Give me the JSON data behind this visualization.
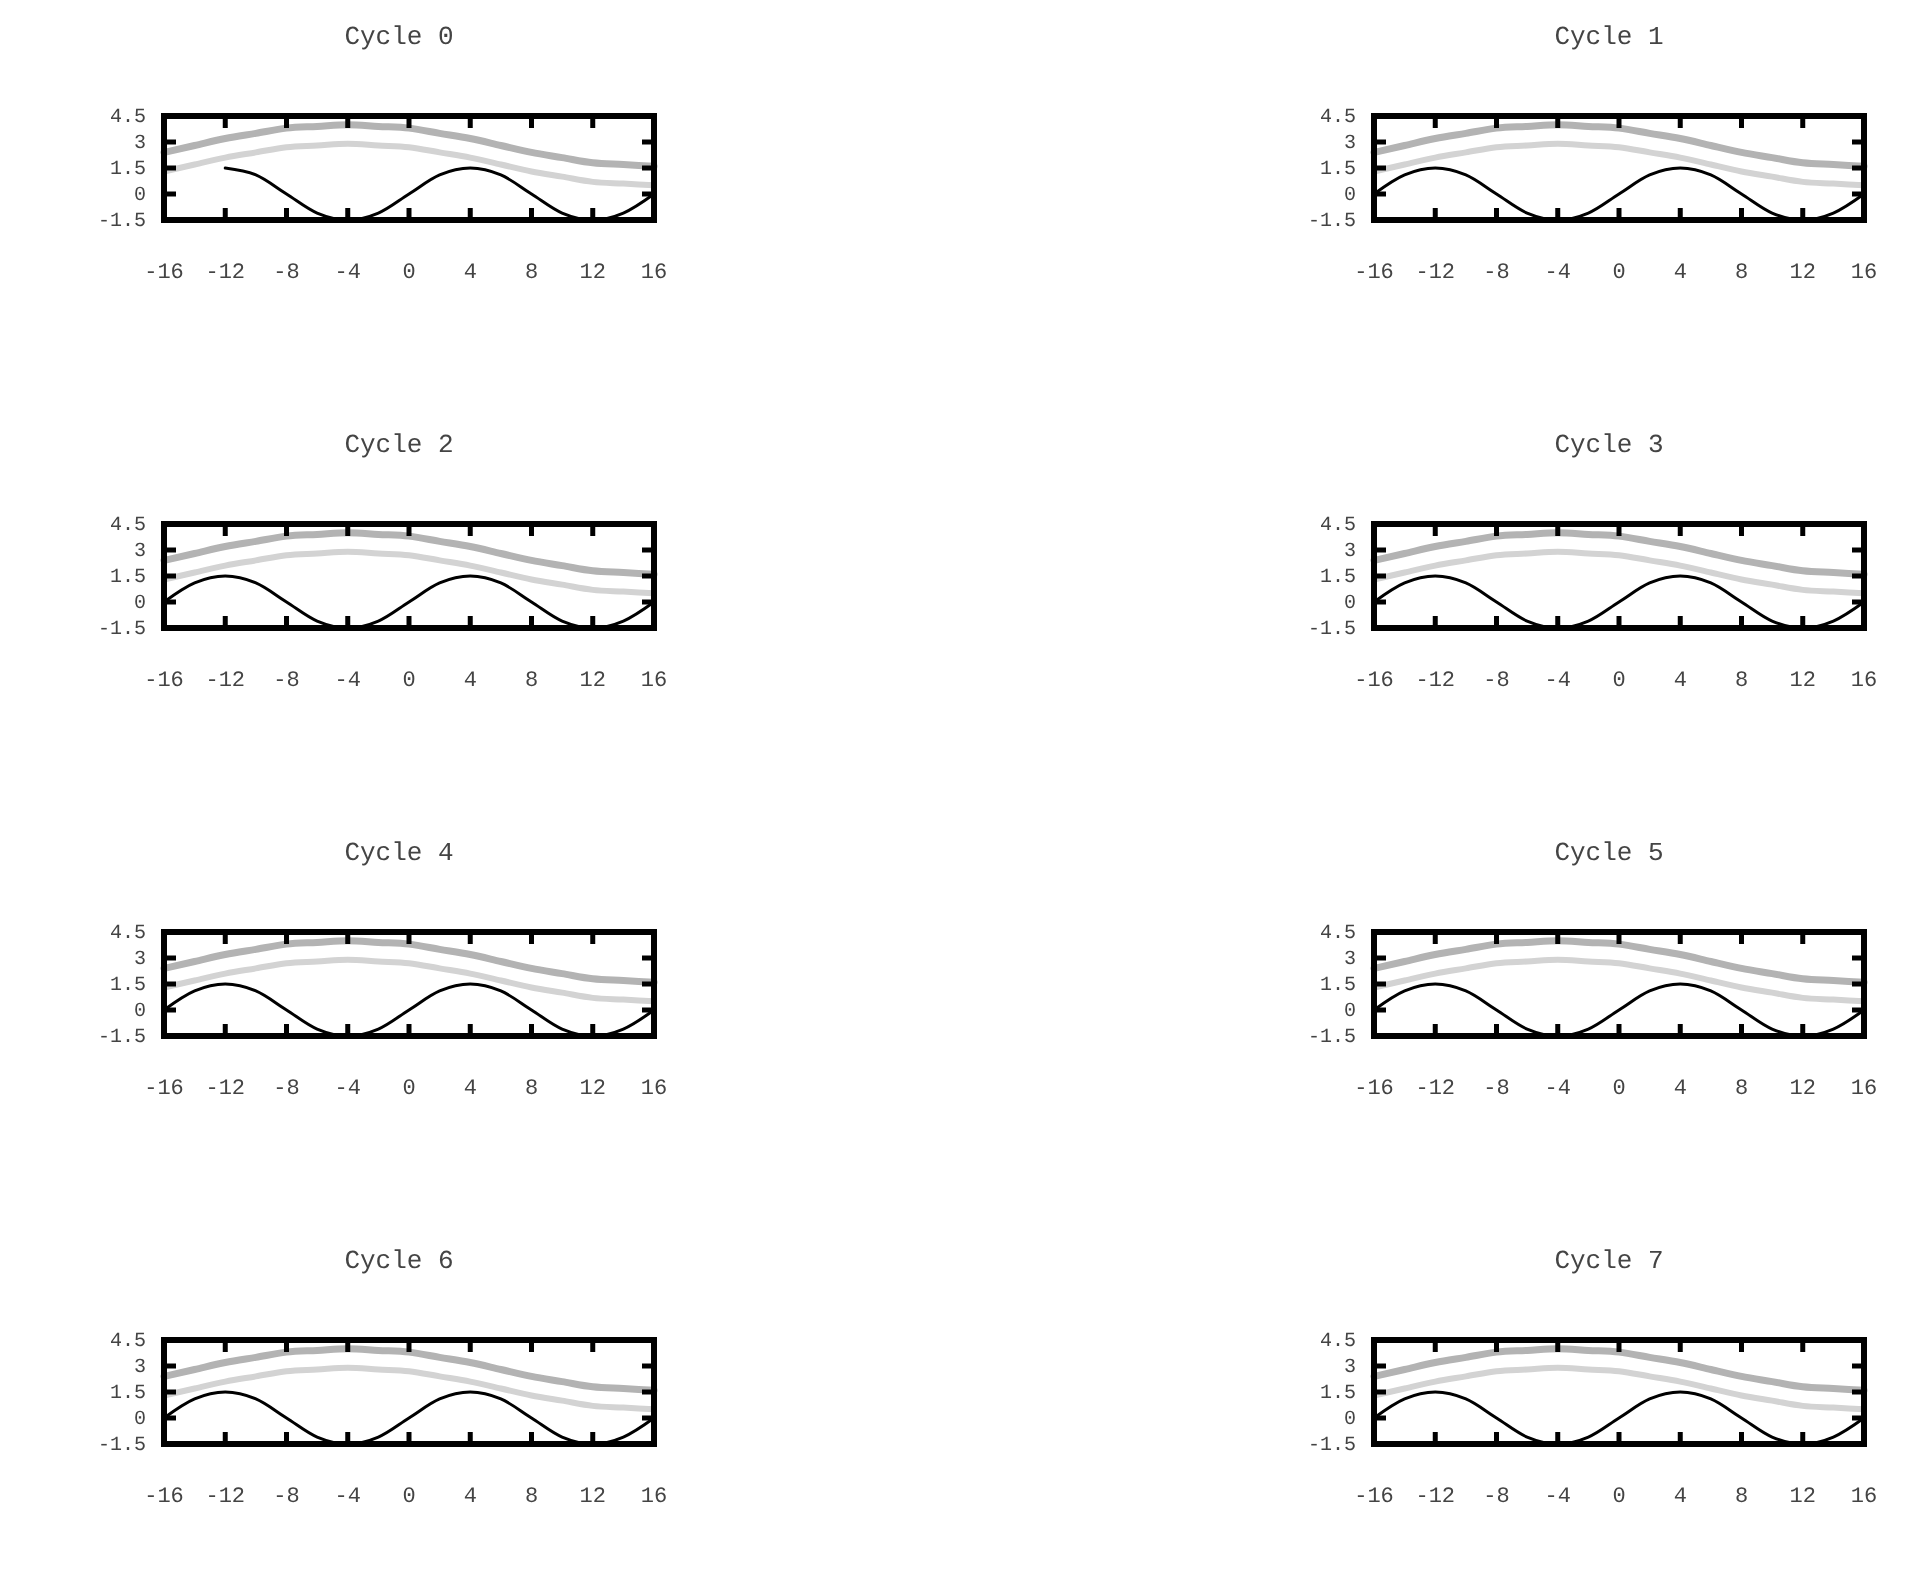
{
  "chart_data": [
    {
      "type": "line",
      "title": "Cycle 0",
      "x": [
        -16,
        -14,
        -12,
        -10,
        -8,
        -6,
        -4,
        -2,
        0,
        2,
        4,
        6,
        8,
        10,
        12,
        14,
        16
      ],
      "xlim": [
        -16,
        16
      ],
      "ylim": [
        -1.5,
        4.5
      ],
      "xticks": [
        -16,
        -12,
        -8,
        -4,
        0,
        4,
        8,
        12,
        16
      ],
      "yticks": [
        -1.5,
        0,
        1.5,
        3,
        4.5
      ],
      "series": [
        {
          "color": "#b3b3b3",
          "values": [
            2.4,
            2.8,
            3.2,
            3.5,
            3.8,
            3.9,
            4.0,
            3.9,
            3.8,
            3.5,
            3.2,
            2.8,
            2.4,
            2.1,
            1.8,
            1.7,
            1.6
          ]
        },
        {
          "color": "#d3d3d3",
          "values": [
            1.3,
            1.7,
            2.1,
            2.4,
            2.7,
            2.8,
            2.9,
            2.8,
            2.7,
            2.4,
            2.1,
            1.7,
            1.3,
            1.0,
            0.7,
            0.6,
            0.5
          ]
        },
        {
          "color": "#000000",
          "values": [
            null,
            null,
            1.5,
            1.1,
            0,
            -1.1,
            -1.5,
            -1.1,
            0,
            1.1,
            1.5,
            1.1,
            0,
            -1.1,
            -1.5,
            -1.1,
            0
          ]
        }
      ]
    },
    {
      "type": "line",
      "title": "Cycle 1",
      "x": [
        -16,
        -14,
        -12,
        -10,
        -8,
        -6,
        -4,
        -2,
        0,
        2,
        4,
        6,
        8,
        10,
        12,
        14,
        16
      ],
      "xlim": [
        -16,
        16
      ],
      "ylim": [
        -1.5,
        4.5
      ],
      "xticks": [
        -16,
        -12,
        -8,
        -4,
        0,
        4,
        8,
        12,
        16
      ],
      "yticks": [
        -1.5,
        0,
        1.5,
        3,
        4.5
      ],
      "series": [
        {
          "color": "#b3b3b3",
          "values": [
            2.4,
            2.8,
            3.2,
            3.5,
            3.8,
            3.9,
            4.0,
            3.9,
            3.8,
            3.5,
            3.2,
            2.8,
            2.4,
            2.1,
            1.8,
            1.7,
            1.6
          ]
        },
        {
          "color": "#d3d3d3",
          "values": [
            1.3,
            1.7,
            2.1,
            2.4,
            2.7,
            2.8,
            2.9,
            2.8,
            2.7,
            2.4,
            2.1,
            1.7,
            1.3,
            1.0,
            0.7,
            0.6,
            0.5
          ]
        },
        {
          "color": "#000000",
          "values": [
            0,
            1.1,
            1.5,
            1.1,
            0,
            -1.1,
            -1.5,
            -1.1,
            0,
            1.1,
            1.5,
            1.1,
            0,
            -1.1,
            -1.5,
            -1.1,
            0
          ]
        }
      ]
    },
    {
      "type": "line",
      "title": "Cycle 2",
      "x": [
        -16,
        -14,
        -12,
        -10,
        -8,
        -6,
        -4,
        -2,
        0,
        2,
        4,
        6,
        8,
        10,
        12,
        14,
        16
      ],
      "xlim": [
        -16,
        16
      ],
      "ylim": [
        -1.5,
        4.5
      ],
      "xticks": [
        -16,
        -12,
        -8,
        -4,
        0,
        4,
        8,
        12,
        16
      ],
      "yticks": [
        -1.5,
        0,
        1.5,
        3,
        4.5
      ],
      "series": [
        {
          "color": "#b3b3b3",
          "values": [
            2.4,
            2.8,
            3.2,
            3.5,
            3.8,
            3.9,
            4.0,
            3.9,
            3.8,
            3.5,
            3.2,
            2.8,
            2.4,
            2.1,
            1.8,
            1.7,
            1.6
          ]
        },
        {
          "color": "#d3d3d3",
          "values": [
            1.3,
            1.7,
            2.1,
            2.4,
            2.7,
            2.8,
            2.9,
            2.8,
            2.7,
            2.4,
            2.1,
            1.7,
            1.3,
            1.0,
            0.7,
            0.6,
            0.5
          ]
        },
        {
          "color": "#000000",
          "values": [
            0,
            1.1,
            1.5,
            1.1,
            0,
            -1.1,
            -1.5,
            -1.1,
            0,
            1.1,
            1.5,
            1.1,
            0,
            -1.1,
            -1.5,
            -1.1,
            0
          ]
        }
      ]
    },
    {
      "type": "line",
      "title": "Cycle 3",
      "x": [
        -16,
        -14,
        -12,
        -10,
        -8,
        -6,
        -4,
        -2,
        0,
        2,
        4,
        6,
        8,
        10,
        12,
        14,
        16
      ],
      "xlim": [
        -16,
        16
      ],
      "ylim": [
        -1.5,
        4.5
      ],
      "xticks": [
        -16,
        -12,
        -8,
        -4,
        0,
        4,
        8,
        12,
        16
      ],
      "yticks": [
        -1.5,
        0,
        1.5,
        3,
        4.5
      ],
      "series": [
        {
          "color": "#b3b3b3",
          "values": [
            2.4,
            2.8,
            3.2,
            3.5,
            3.8,
            3.9,
            4.0,
            3.9,
            3.8,
            3.5,
            3.2,
            2.8,
            2.4,
            2.1,
            1.8,
            1.7,
            1.6
          ]
        },
        {
          "color": "#d3d3d3",
          "values": [
            1.3,
            1.7,
            2.1,
            2.4,
            2.7,
            2.8,
            2.9,
            2.8,
            2.7,
            2.4,
            2.1,
            1.7,
            1.3,
            1.0,
            0.7,
            0.6,
            0.5
          ]
        },
        {
          "color": "#000000",
          "values": [
            0,
            1.1,
            1.5,
            1.1,
            0,
            -1.1,
            -1.5,
            -1.1,
            0,
            1.1,
            1.5,
            1.1,
            0,
            -1.1,
            -1.5,
            -1.1,
            0
          ]
        }
      ]
    },
    {
      "type": "line",
      "title": "Cycle 4",
      "x": [
        -16,
        -14,
        -12,
        -10,
        -8,
        -6,
        -4,
        -2,
        0,
        2,
        4,
        6,
        8,
        10,
        12,
        14,
        16
      ],
      "xlim": [
        -16,
        16
      ],
      "ylim": [
        -1.5,
        4.5
      ],
      "xticks": [
        -16,
        -12,
        -8,
        -4,
        0,
        4,
        8,
        12,
        16
      ],
      "yticks": [
        -1.5,
        0,
        1.5,
        3,
        4.5
      ],
      "series": [
        {
          "color": "#b3b3b3",
          "values": [
            2.4,
            2.8,
            3.2,
            3.5,
            3.8,
            3.9,
            4.0,
            3.9,
            3.8,
            3.5,
            3.2,
            2.8,
            2.4,
            2.1,
            1.8,
            1.7,
            1.6
          ]
        },
        {
          "color": "#d3d3d3",
          "values": [
            1.3,
            1.7,
            2.1,
            2.4,
            2.7,
            2.8,
            2.9,
            2.8,
            2.7,
            2.4,
            2.1,
            1.7,
            1.3,
            1.0,
            0.7,
            0.6,
            0.5
          ]
        },
        {
          "color": "#000000",
          "values": [
            0,
            1.1,
            1.5,
            1.1,
            0,
            -1.1,
            -1.5,
            -1.1,
            0,
            1.1,
            1.5,
            1.1,
            0,
            -1.1,
            -1.5,
            -1.1,
            0
          ]
        }
      ]
    },
    {
      "type": "line",
      "title": "Cycle 5",
      "x": [
        -16,
        -14,
        -12,
        -10,
        -8,
        -6,
        -4,
        -2,
        0,
        2,
        4,
        6,
        8,
        10,
        12,
        14,
        16
      ],
      "xlim": [
        -16,
        16
      ],
      "ylim": [
        -1.5,
        4.5
      ],
      "xticks": [
        -16,
        -12,
        -8,
        -4,
        0,
        4,
        8,
        12,
        16
      ],
      "yticks": [
        -1.5,
        0,
        1.5,
        3,
        4.5
      ],
      "series": [
        {
          "color": "#b3b3b3",
          "values": [
            2.4,
            2.8,
            3.2,
            3.5,
            3.8,
            3.9,
            4.0,
            3.9,
            3.8,
            3.5,
            3.2,
            2.8,
            2.4,
            2.1,
            1.8,
            1.7,
            1.6
          ]
        },
        {
          "color": "#d3d3d3",
          "values": [
            1.3,
            1.7,
            2.1,
            2.4,
            2.7,
            2.8,
            2.9,
            2.8,
            2.7,
            2.4,
            2.1,
            1.7,
            1.3,
            1.0,
            0.7,
            0.6,
            0.5
          ]
        },
        {
          "color": "#000000",
          "values": [
            0,
            1.1,
            1.5,
            1.1,
            0,
            -1.1,
            -1.5,
            -1.1,
            0,
            1.1,
            1.5,
            1.1,
            0,
            -1.1,
            -1.5,
            -1.1,
            0
          ]
        }
      ]
    },
    {
      "type": "line",
      "title": "Cycle 6",
      "x": [
        -16,
        -14,
        -12,
        -10,
        -8,
        -6,
        -4,
        -2,
        0,
        2,
        4,
        6,
        8,
        10,
        12,
        14,
        16
      ],
      "xlim": [
        -16,
        16
      ],
      "ylim": [
        -1.5,
        4.5
      ],
      "xticks": [
        -16,
        -12,
        -8,
        -4,
        0,
        4,
        8,
        12,
        16
      ],
      "yticks": [
        -1.5,
        0,
        1.5,
        3,
        4.5
      ],
      "series": [
        {
          "color": "#b3b3b3",
          "values": [
            2.4,
            2.8,
            3.2,
            3.5,
            3.8,
            3.9,
            4.0,
            3.9,
            3.8,
            3.5,
            3.2,
            2.8,
            2.4,
            2.1,
            1.8,
            1.7,
            1.6
          ]
        },
        {
          "color": "#d3d3d3",
          "values": [
            1.3,
            1.7,
            2.1,
            2.4,
            2.7,
            2.8,
            2.9,
            2.8,
            2.7,
            2.4,
            2.1,
            1.7,
            1.3,
            1.0,
            0.7,
            0.6,
            0.5
          ]
        },
        {
          "color": "#000000",
          "values": [
            0,
            1.1,
            1.5,
            1.1,
            0,
            -1.1,
            -1.5,
            -1.1,
            0,
            1.1,
            1.5,
            1.1,
            0,
            -1.1,
            -1.5,
            -1.1,
            0
          ]
        }
      ]
    },
    {
      "type": "line",
      "title": "Cycle 7",
      "x": [
        -16,
        -14,
        -12,
        -10,
        -8,
        -6,
        -4,
        -2,
        0,
        2,
        4,
        6,
        8,
        10,
        12,
        14,
        16
      ],
      "xlim": [
        -16,
        16
      ],
      "ylim": [
        -1.5,
        4.5
      ],
      "xticks": [
        -16,
        -12,
        -8,
        -4,
        0,
        4,
        8,
        12,
        16
      ],
      "yticks": [
        -1.5,
        0,
        1.5,
        3,
        4.5
      ],
      "series": [
        {
          "color": "#b3b3b3",
          "values": [
            2.4,
            2.8,
            3.2,
            3.5,
            3.8,
            3.9,
            4.0,
            3.9,
            3.8,
            3.5,
            3.2,
            2.8,
            2.4,
            2.1,
            1.8,
            1.7,
            1.6
          ]
        },
        {
          "color": "#d3d3d3",
          "values": [
            1.3,
            1.7,
            2.1,
            2.4,
            2.7,
            2.8,
            2.9,
            2.8,
            2.7,
            2.4,
            2.1,
            1.7,
            1.3,
            1.0,
            0.7,
            0.6,
            0.5
          ]
        },
        {
          "color": "#000000",
          "values": [
            0,
            1.1,
            1.5,
            1.1,
            0,
            -1.1,
            -1.5,
            -1.1,
            0,
            1.1,
            1.5,
            1.1,
            0,
            -1.1,
            -1.5,
            -1.1,
            0
          ]
        }
      ]
    }
  ]
}
